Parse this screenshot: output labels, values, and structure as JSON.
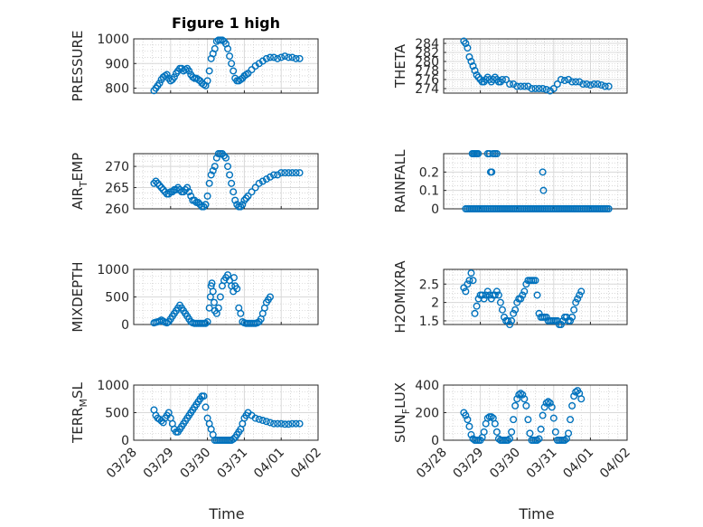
{
  "figure": {
    "title": "Figure 1 high",
    "marker_color": "#0072bd"
  },
  "x_axis": {
    "label": "Time",
    "ticks": [
      "03/28",
      "03/29",
      "03/30",
      "03/31",
      "04/01",
      "04/02"
    ],
    "range": [
      0,
      5
    ]
  },
  "chart_data": [
    {
      "type": "scatter",
      "ylabel": "PRESSURE",
      "ylim": [
        780,
        1000
      ],
      "yticks": [
        800,
        900,
        1000
      ],
      "grid": true,
      "x": [
        0.55,
        0.6,
        0.65,
        0.7,
        0.75,
        0.8,
        0.85,
        0.9,
        0.95,
        1.0,
        1.05,
        1.1,
        1.15,
        1.2,
        1.25,
        1.3,
        1.35,
        1.4,
        1.45,
        1.5,
        1.55,
        1.6,
        1.65,
        1.7,
        1.75,
        1.8,
        1.85,
        1.9,
        1.95,
        2.0,
        2.05,
        2.1,
        2.15,
        2.2,
        2.25,
        2.3,
        2.35,
        2.4,
        2.45,
        2.5,
        2.55,
        2.6,
        2.65,
        2.7,
        2.75,
        2.8,
        2.85,
        2.9,
        2.95,
        3.0,
        3.05,
        3.1,
        3.2,
        3.3,
        3.4,
        3.5,
        3.6,
        3.7,
        3.8,
        3.9,
        4.0,
        4.1,
        4.2,
        4.3,
        4.4,
        4.5
      ],
      "y": [
        790,
        800,
        810,
        820,
        835,
        845,
        850,
        855,
        840,
        830,
        835,
        845,
        860,
        870,
        880,
        880,
        870,
        875,
        880,
        870,
        855,
        845,
        840,
        840,
        835,
        830,
        820,
        815,
        810,
        830,
        870,
        920,
        940,
        960,
        990,
        995,
        995,
        995,
        990,
        980,
        960,
        930,
        900,
        870,
        840,
        830,
        830,
        835,
        840,
        850,
        855,
        860,
        875,
        890,
        900,
        910,
        920,
        925,
        925,
        920,
        925,
        930,
        925,
        925,
        920,
        920
      ]
    },
    {
      "type": "scatter",
      "ylabel": "THETA",
      "ylim": [
        273,
        285
      ],
      "yticks": [
        274,
        276,
        278,
        280,
        282,
        284
      ],
      "grid": true,
      "x": [
        0.55,
        0.6,
        0.65,
        0.7,
        0.75,
        0.8,
        0.85,
        0.9,
        0.95,
        1.0,
        1.05,
        1.1,
        1.15,
        1.2,
        1.25,
        1.3,
        1.35,
        1.4,
        1.45,
        1.5,
        1.55,
        1.6,
        1.7,
        1.8,
        1.9,
        2.0,
        2.1,
        2.2,
        2.3,
        2.4,
        2.5,
        2.6,
        2.7,
        2.8,
        2.9,
        3.0,
        3.1,
        3.2,
        3.3,
        3.4,
        3.5,
        3.6,
        3.7,
        3.8,
        3.9,
        4.0,
        4.1,
        4.2,
        4.3,
        4.4,
        4.5
      ],
      "y": [
        284.5,
        284,
        283,
        281,
        280,
        279,
        278,
        277,
        276.5,
        276,
        275.5,
        275.5,
        276,
        276.5,
        276,
        275.5,
        276,
        276.5,
        276,
        275.5,
        275.5,
        276,
        276,
        275,
        275,
        274.5,
        274.5,
        274.5,
        274.5,
        274,
        274,
        274,
        274,
        273.8,
        273.5,
        274,
        275,
        276,
        275.8,
        276,
        275.5,
        275.5,
        275.5,
        275,
        275,
        274.8,
        275,
        275,
        274.8,
        274.5,
        274.5
      ]
    },
    {
      "type": "scatter",
      "ylabel": "AIR_TEMP",
      "ylim": [
        260,
        273
      ],
      "yticks": [
        260,
        265,
        270
      ],
      "grid": true,
      "x": [
        0.55,
        0.6,
        0.65,
        0.7,
        0.75,
        0.8,
        0.85,
        0.9,
        0.95,
        1.0,
        1.05,
        1.1,
        1.15,
        1.2,
        1.25,
        1.3,
        1.35,
        1.4,
        1.45,
        1.5,
        1.55,
        1.6,
        1.65,
        1.7,
        1.75,
        1.8,
        1.85,
        1.9,
        1.95,
        2.0,
        2.05,
        2.1,
        2.15,
        2.2,
        2.25,
        2.3,
        2.35,
        2.4,
        2.45,
        2.5,
        2.55,
        2.6,
        2.65,
        2.7,
        2.75,
        2.8,
        2.85,
        2.9,
        2.95,
        3.0,
        3.05,
        3.1,
        3.2,
        3.3,
        3.4,
        3.5,
        3.6,
        3.7,
        3.8,
        3.9,
        4.0,
        4.1,
        4.2,
        4.3,
        4.4,
        4.5
      ],
      "y": [
        266,
        266.5,
        266,
        265.5,
        265,
        264.5,
        264,
        263.5,
        263.5,
        264,
        264,
        264.5,
        264.5,
        265,
        264.5,
        264,
        264,
        264.5,
        265,
        264,
        263,
        262,
        262,
        261.5,
        261.5,
        261,
        260.5,
        260.5,
        261,
        263,
        266,
        268,
        269,
        270,
        272,
        273,
        273,
        273,
        272.5,
        272,
        270,
        268,
        266,
        264,
        262,
        261,
        260.5,
        260.5,
        261,
        262,
        262.5,
        263,
        264,
        265,
        266,
        266.5,
        267,
        267.5,
        268,
        268,
        268.5,
        268.5,
        268.5,
        268.5,
        268.5,
        268.5
      ]
    },
    {
      "type": "scatter",
      "ylabel": "RAINFALL",
      "ylim": [
        0,
        0.3
      ],
      "yticks": [
        0,
        0.1,
        0.2
      ],
      "grid": true,
      "x": [
        0.6,
        0.65,
        0.7,
        0.75,
        0.8,
        0.85,
        0.9,
        0.95,
        1.0,
        1.05,
        1.1,
        1.15,
        1.2,
        1.25,
        1.3,
        1.35,
        1.4,
        1.45,
        1.5,
        1.55,
        1.6,
        1.65,
        1.7,
        1.75,
        1.8,
        1.85,
        1.9,
        1.95,
        2.0,
        2.05,
        2.1,
        2.15,
        2.2,
        2.25,
        2.3,
        2.35,
        2.4,
        2.45,
        2.5,
        2.55,
        2.6,
        2.65,
        2.7,
        2.75,
        2.8,
        2.85,
        2.9,
        2.95,
        3.0,
        3.05,
        3.1,
        3.15,
        3.2,
        3.25,
        3.3,
        3.35,
        3.4,
        3.45,
        3.5,
        3.55,
        3.6,
        3.65,
        3.7,
        3.75,
        3.8,
        3.85,
        3.9,
        3.95,
        4.0,
        4.05,
        4.1,
        4.15,
        4.2,
        4.25,
        4.3,
        4.35,
        4.4,
        4.45,
        4.5,
        0.78,
        0.82,
        0.86,
        0.9,
        0.94,
        1.2,
        1.25,
        1.35,
        1.4,
        1.45,
        1.28,
        1.31,
        2.7,
        2.72
      ],
      "y": [
        0,
        0,
        0,
        0,
        0,
        0,
        0,
        0,
        0,
        0,
        0,
        0,
        0,
        0,
        0,
        0,
        0,
        0,
        0,
        0,
        0,
        0,
        0,
        0,
        0,
        0,
        0,
        0,
        0,
        0,
        0,
        0,
        0,
        0,
        0,
        0,
        0,
        0,
        0,
        0,
        0,
        0,
        0,
        0,
        0,
        0,
        0,
        0,
        0,
        0,
        0,
        0,
        0,
        0,
        0,
        0,
        0,
        0,
        0,
        0,
        0,
        0,
        0,
        0,
        0,
        0,
        0,
        0,
        0,
        0,
        0,
        0,
        0,
        0,
        0,
        0,
        0,
        0,
        0,
        0.3,
        0.3,
        0.3,
        0.3,
        0.3,
        0.3,
        0.3,
        0.3,
        0.3,
        0.3,
        0.2,
        0.2,
        0.2,
        0.1
      ]
    },
    {
      "type": "scatter",
      "ylabel": "MIXDEPTH",
      "ylim": [
        0,
        1000
      ],
      "yticks": [
        0,
        500,
        1000
      ],
      "grid": true,
      "x": [
        0.55,
        0.6,
        0.65,
        0.7,
        0.75,
        0.8,
        0.85,
        0.9,
        0.95,
        1.0,
        1.05,
        1.1,
        1.15,
        1.2,
        1.25,
        1.3,
        1.35,
        1.4,
        1.45,
        1.5,
        1.55,
        1.6,
        1.65,
        1.7,
        1.75,
        1.8,
        1.85,
        1.9,
        1.95,
        2.0,
        2.05,
        2.08,
        2.1,
        2.12,
        2.15,
        2.18,
        2.2,
        2.25,
        2.3,
        2.35,
        2.4,
        2.45,
        2.5,
        2.55,
        2.6,
        2.65,
        2.7,
        2.72,
        2.75,
        2.8,
        2.85,
        2.9,
        2.95,
        3.0,
        3.05,
        3.1,
        3.15,
        3.2,
        3.25,
        3.3,
        3.35,
        3.4,
        3.45,
        3.5,
        3.55,
        3.6,
        3.65,
        3.7
      ],
      "y": [
        30,
        40,
        50,
        60,
        80,
        60,
        40,
        30,
        50,
        100,
        150,
        200,
        250,
        300,
        350,
        300,
        250,
        200,
        150,
        100,
        50,
        30,
        20,
        20,
        20,
        20,
        20,
        20,
        20,
        50,
        300,
        500,
        700,
        750,
        600,
        400,
        250,
        200,
        300,
        500,
        700,
        800,
        850,
        900,
        800,
        700,
        600,
        850,
        700,
        650,
        300,
        200,
        50,
        30,
        20,
        20,
        20,
        20,
        20,
        20,
        30,
        50,
        100,
        200,
        300,
        400,
        450,
        500
      ]
    },
    {
      "type": "scatter",
      "ylabel": "H2OMIXRA",
      "ylim": [
        1.4,
        2.9
      ],
      "yticks": [
        1.5,
        2,
        2.5
      ],
      "grid": true,
      "x": [
        0.55,
        0.6,
        0.65,
        0.7,
        0.75,
        0.8,
        0.85,
        0.9,
        0.95,
        1.0,
        1.05,
        1.1,
        1.15,
        1.2,
        1.25,
        1.3,
        1.35,
        1.4,
        1.45,
        1.5,
        1.55,
        1.6,
        1.65,
        1.7,
        1.75,
        1.8,
        1.85,
        1.9,
        1.95,
        2.0,
        2.05,
        2.1,
        2.15,
        2.2,
        2.25,
        2.3,
        2.35,
        2.4,
        2.45,
        2.5,
        2.55,
        2.6,
        2.65,
        2.7,
        2.75,
        2.8,
        2.85,
        2.9,
        2.95,
        3.0,
        3.05,
        3.1,
        3.15,
        3.2,
        3.25,
        3.3,
        3.35,
        3.4,
        3.45,
        3.5,
        3.55,
        3.6,
        3.65,
        3.7,
        3.75
      ],
      "y": [
        2.4,
        2.3,
        2.5,
        2.6,
        2.8,
        2.6,
        1.7,
        1.9,
        2.1,
        2.2,
        2.2,
        2.1,
        2.2,
        2.3,
        2.2,
        2.1,
        2.2,
        2.2,
        2.3,
        2.2,
        2.0,
        1.8,
        1.6,
        1.5,
        1.5,
        1.4,
        1.5,
        1.7,
        1.8,
        2.0,
        2.1,
        2.1,
        2.2,
        2.3,
        2.5,
        2.6,
        2.6,
        2.6,
        2.6,
        2.6,
        2.2,
        1.7,
        1.6,
        1.6,
        1.6,
        1.6,
        1.5,
        1.5,
        1.5,
        1.5,
        1.5,
        1.5,
        1.4,
        1.4,
        1.5,
        1.6,
        1.6,
        1.5,
        1.5,
        1.6,
        1.8,
        2.0,
        2.1,
        2.2,
        2.3
      ]
    },
    {
      "type": "scatter",
      "ylabel": "TERR_MSL",
      "ylim": [
        0,
        1000
      ],
      "yticks": [
        0,
        500,
        1000
      ],
      "grid": true,
      "x": [
        0.55,
        0.6,
        0.65,
        0.7,
        0.75,
        0.8,
        0.85,
        0.9,
        0.95,
        1.0,
        1.05,
        1.1,
        1.15,
        1.2,
        1.25,
        1.3,
        1.35,
        1.4,
        1.45,
        1.5,
        1.55,
        1.6,
        1.65,
        1.7,
        1.75,
        1.8,
        1.85,
        1.9,
        1.95,
        2.0,
        2.05,
        2.1,
        2.15,
        2.2,
        2.25,
        2.3,
        2.35,
        2.4,
        2.45,
        2.5,
        2.55,
        2.6,
        2.65,
        2.7,
        2.75,
        2.8,
        2.85,
        2.9,
        2.95,
        3.0,
        3.05,
        3.1,
        3.2,
        3.3,
        3.4,
        3.5,
        3.6,
        3.7,
        3.8,
        3.9,
        4.0,
        4.1,
        4.2,
        4.3,
        4.4,
        4.5
      ],
      "y": [
        550,
        450,
        400,
        380,
        350,
        320,
        400,
        450,
        500,
        400,
        300,
        200,
        150,
        150,
        200,
        250,
        300,
        350,
        400,
        450,
        500,
        550,
        600,
        650,
        700,
        750,
        800,
        800,
        600,
        400,
        300,
        200,
        100,
        0,
        0,
        0,
        0,
        0,
        0,
        0,
        0,
        0,
        0,
        20,
        50,
        100,
        150,
        200,
        300,
        400,
        450,
        500,
        450,
        400,
        380,
        360,
        340,
        320,
        300,
        300,
        300,
        290,
        290,
        300,
        300,
        300
      ]
    },
    {
      "type": "scatter",
      "ylabel": "SUN_FLUX",
      "ylim": [
        0,
        400
      ],
      "yticks": [
        0,
        200,
        400
      ],
      "grid": true,
      "x": [
        0.55,
        0.6,
        0.65,
        0.7,
        0.75,
        0.8,
        0.85,
        0.9,
        0.95,
        1.0,
        1.05,
        1.1,
        1.15,
        1.2,
        1.25,
        1.3,
        1.35,
        1.4,
        1.45,
        1.5,
        1.55,
        1.6,
        1.65,
        1.7,
        1.75,
        1.8,
        1.85,
        1.9,
        1.95,
        2.0,
        2.05,
        2.1,
        2.15,
        2.2,
        2.25,
        2.3,
        2.35,
        2.4,
        2.45,
        2.5,
        2.55,
        2.6,
        2.65,
        2.7,
        2.75,
        2.8,
        2.85,
        2.9,
        2.95,
        3.0,
        3.05,
        3.1,
        3.15,
        3.2,
        3.25,
        3.3,
        3.35,
        3.4,
        3.45,
        3.5,
        3.55,
        3.6,
        3.65,
        3.7,
        3.75
      ],
      "y": [
        200,
        180,
        150,
        100,
        40,
        10,
        0,
        0,
        0,
        0,
        20,
        60,
        120,
        160,
        170,
        170,
        160,
        120,
        60,
        10,
        0,
        0,
        0,
        0,
        0,
        10,
        60,
        150,
        250,
        300,
        330,
        340,
        330,
        300,
        250,
        150,
        50,
        0,
        0,
        0,
        0,
        10,
        80,
        180,
        240,
        270,
        280,
        270,
        240,
        160,
        60,
        0,
        0,
        0,
        0,
        0,
        10,
        50,
        150,
        250,
        320,
        350,
        360,
        340,
        300
      ]
    }
  ]
}
